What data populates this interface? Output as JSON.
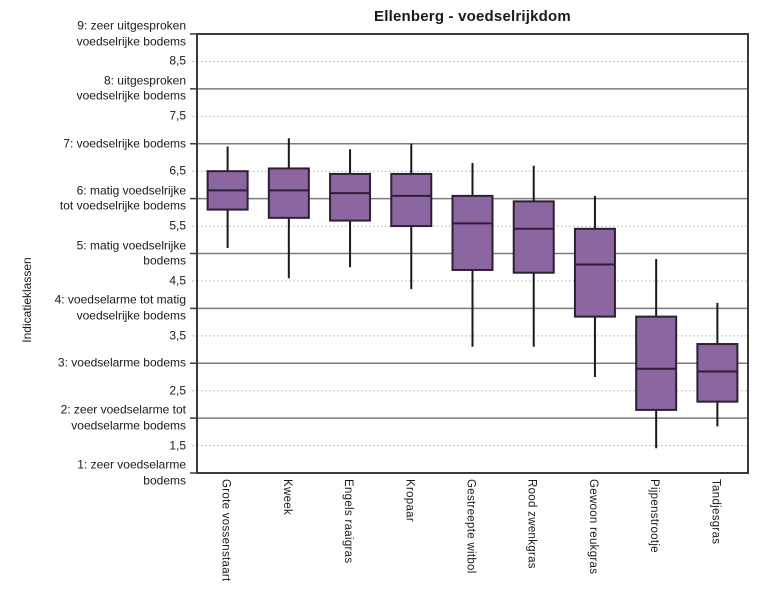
{
  "chart_data": {
    "type": "boxplot",
    "title": "Ellenberg - voedselrijkdom",
    "xlabel": "",
    "ylabel": "Indicatieklassen",
    "ylim": [
      1,
      9
    ],
    "ytick_step_major": 1,
    "ytick_step_minor": 0.5,
    "grid": "solid gray lines at integer values, dotted light lines at half values",
    "legend": "none",
    "categories": [
      "Grote vossenstaart",
      "Kweek",
      "Engels raaigras",
      "Kropaar",
      "Gestreepte witbol",
      "Rood zwenkgras",
      "Gewoon reukgras",
      "Pijpenstrootje",
      "Tandjesgras"
    ],
    "series": [
      {
        "name": "Grote vossenstaart",
        "whisker_low": 5.1,
        "q1": 5.8,
        "median": 6.15,
        "q3": 6.5,
        "whisker_high": 6.95
      },
      {
        "name": "Kweek",
        "whisker_low": 4.55,
        "q1": 5.65,
        "median": 6.15,
        "q3": 6.55,
        "whisker_high": 7.1
      },
      {
        "name": "Engels raaigras",
        "whisker_low": 4.75,
        "q1": 5.6,
        "median": 6.1,
        "q3": 6.45,
        "whisker_high": 6.9
      },
      {
        "name": "Kropaar",
        "whisker_low": 4.35,
        "q1": 5.5,
        "median": 6.05,
        "q3": 6.45,
        "whisker_high": 7.0
      },
      {
        "name": "Gestreepte witbol",
        "whisker_low": 3.3,
        "q1": 4.7,
        "median": 5.55,
        "q3": 6.05,
        "whisker_high": 6.65
      },
      {
        "name": "Rood zwenkgras",
        "whisker_low": 3.3,
        "q1": 4.65,
        "median": 5.45,
        "q3": 5.95,
        "whisker_high": 6.6
      },
      {
        "name": "Gewoon reukgras",
        "whisker_low": 2.75,
        "q1": 3.85,
        "median": 4.8,
        "q3": 5.45,
        "whisker_high": 6.05
      },
      {
        "name": "Pijpenstrootje",
        "whisker_low": 1.45,
        "q1": 2.15,
        "median": 2.9,
        "q3": 3.85,
        "whisker_high": 4.9
      },
      {
        "name": "Tandjesgras",
        "whisker_low": 1.85,
        "q1": 2.3,
        "median": 2.85,
        "q3": 3.35,
        "whisker_high": 4.1
      }
    ],
    "y_axis_labels": [
      {
        "value": 9,
        "lines": [
          "9: zeer uitgesproken",
          "voedselrijke bodems"
        ]
      },
      {
        "value": 8.5,
        "lines": [
          "8,5"
        ]
      },
      {
        "value": 8,
        "lines": [
          "8: uitgesproken",
          "voedselrijke bodems"
        ]
      },
      {
        "value": 7.5,
        "lines": [
          "7,5"
        ]
      },
      {
        "value": 7,
        "lines": [
          "7: voedselrijke bodems"
        ]
      },
      {
        "value": 6.5,
        "lines": [
          "6,5"
        ]
      },
      {
        "value": 6,
        "lines": [
          "6: matig voedselrijke",
          "tot voedselrijke bodems"
        ]
      },
      {
        "value": 5.5,
        "lines": [
          "5,5"
        ]
      },
      {
        "value": 5,
        "lines": [
          "5: matig voedselrijke",
          "bodems"
        ]
      },
      {
        "value": 4.5,
        "lines": [
          "4,5"
        ]
      },
      {
        "value": 4,
        "lines": [
          "4: voedselarme tot matig",
          "voedselrijke bodems"
        ]
      },
      {
        "value": 3.5,
        "lines": [
          "3,5"
        ]
      },
      {
        "value": 3,
        "lines": [
          "3: voedselarme bodems"
        ]
      },
      {
        "value": 2.5,
        "lines": [
          "2,5"
        ]
      },
      {
        "value": 2,
        "lines": [
          "2: zeer voedselarme tot",
          "voedselarme bodems"
        ]
      },
      {
        "value": 1.5,
        "lines": [
          "1,5"
        ]
      },
      {
        "value": 1,
        "lines": [
          "1: zeer voedselarme",
          "bodems"
        ]
      }
    ],
    "colors": {
      "box_fill": "#8c66a0",
      "box_border": "#2d1f35",
      "median_line": "#2d1f35",
      "whisker": "#1a1a1a",
      "grid_major": "#7d7d7d",
      "grid_minor": "#aeaeae",
      "frame": "#3a3a3a",
      "text": "#1a1a1a",
      "background": "#ffffff"
    }
  }
}
